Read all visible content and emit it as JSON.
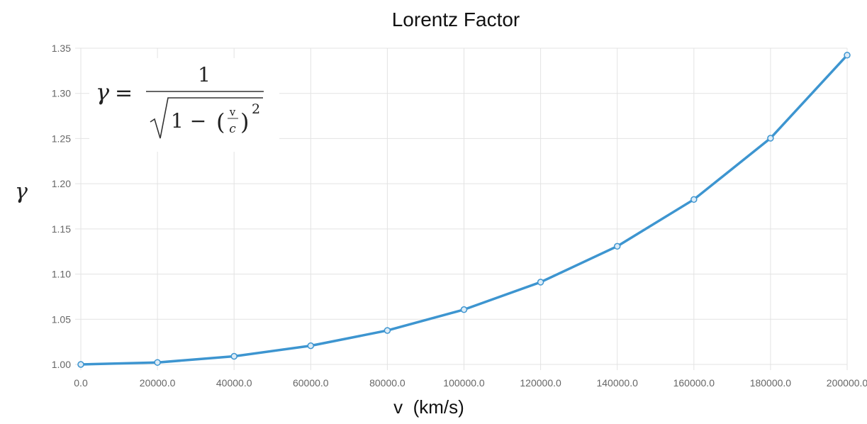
{
  "chart_data": {
    "type": "line",
    "title": "Lorentz Factor",
    "xlabel": "v  (km/s)",
    "ylabel": "γ",
    "x": [
      0,
      20000,
      40000,
      60000,
      80000,
      100000,
      120000,
      140000,
      160000,
      180000,
      200000
    ],
    "series": [
      {
        "values": [
          1.0,
          1.0022,
          1.009,
          1.0207,
          1.0376,
          1.0607,
          1.0911,
          1.1308,
          1.1826,
          1.2504,
          1.3423
        ],
        "color": "#3d95d0"
      }
    ],
    "xticks": [
      "0.0",
      "20000.0",
      "40000.0",
      "60000.0",
      "80000.0",
      "100000.0",
      "120000.0",
      "140000.0",
      "160000.0",
      "180000.0",
      "200000.0"
    ],
    "yticks": [
      "1.00",
      "1.05",
      "1.10",
      "1.15",
      "1.20",
      "1.25",
      "1.30",
      "1.35"
    ],
    "xlim": [
      0,
      200000
    ],
    "ylim": [
      1.0,
      1.35
    ],
    "grid": true,
    "legend": "none",
    "annotation": {
      "gamma": "γ",
      "equals": "=",
      "numerator": "1",
      "one_minus": "1 −",
      "v": "v",
      "c": "c",
      "exponent": "2"
    }
  }
}
